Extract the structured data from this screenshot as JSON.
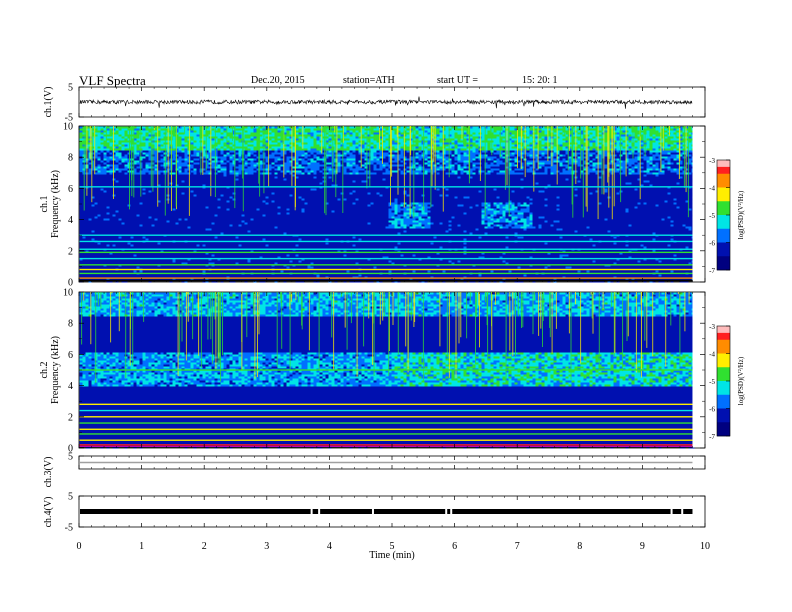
{
  "header": {
    "title": "VLF  Spectra",
    "date": "Dec.20, 2015",
    "station": "station=ATH",
    "start_label": "start  UT  =",
    "start_time": "15: 20: 1"
  },
  "colorbar": {
    "ticks": [
      "-3",
      "-4",
      "-5",
      "-6",
      "-7"
    ],
    "label": "log(PSD)(V²/Hz)",
    "colors": [
      "#ff2020",
      "#ff8c00",
      "#ffee00",
      "#30e030",
      "#00e5e5",
      "#0070ff",
      "#0010b0",
      "#000080"
    ]
  },
  "chart_data": [
    {
      "type": "line",
      "id": "ch1-waveform",
      "ylabel": "ch.1(V)",
      "ylim": [
        -5,
        5
      ],
      "yticks": [
        "5",
        "-5"
      ],
      "xlim": [
        0,
        10
      ],
      "baseline": 0,
      "note_series": "noise-like VLF waveform around baseline with spikes",
      "color": "#000000"
    },
    {
      "type": "heatmap",
      "id": "ch1-spectrogram",
      "ylabel": "ch.1",
      "ylabel2": "Frequency  (kHz)",
      "ylim": [
        0,
        10
      ],
      "yticks": [
        "0",
        "2",
        "4",
        "6",
        "8",
        "10"
      ],
      "xlim": [
        0,
        9.8
      ],
      "zlim": [
        -7,
        -3
      ]
    },
    {
      "type": "heatmap",
      "id": "ch2-spectrogram",
      "ylabel": "ch.2",
      "ylabel2": "Frequency  (kHz)",
      "ylim": [
        0,
        10
      ],
      "yticks": [
        "0",
        "2",
        "4",
        "6",
        "8",
        "10"
      ],
      "xlim": [
        0,
        9.8
      ],
      "zlim": [
        -7,
        -3
      ]
    },
    {
      "type": "line",
      "id": "ch3-waveform",
      "ylabel": "ch.3(V)",
      "ylim": [
        -5,
        5
      ],
      "yticks": [
        "5"
      ],
      "baseline": 0,
      "color": "#a0a0a0"
    },
    {
      "type": "line",
      "id": "ch4-waveform",
      "ylabel": "ch.4(V)",
      "ylim": [
        -5,
        5
      ],
      "yticks": [
        "5",
        "-5"
      ],
      "baseline": 0,
      "color": "#000000"
    }
  ],
  "xaxis": {
    "label": "Time  (min)",
    "ticks": [
      "0",
      "1",
      "2",
      "3",
      "4",
      "5",
      "6",
      "7",
      "8",
      "9",
      "10"
    ]
  }
}
